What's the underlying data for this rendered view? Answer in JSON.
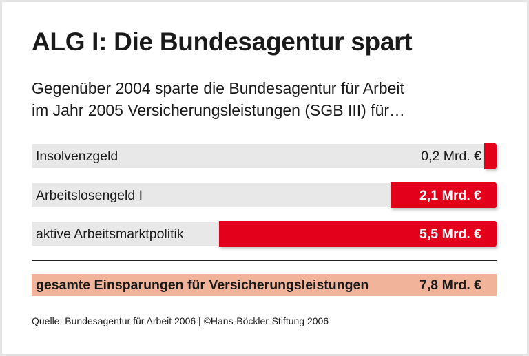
{
  "title": "ALG I: Die Bundesagentur spart",
  "subtitle_line1": "Gegenüber 2004 sparte die Bundesagentur für Arbeit",
  "subtitle_line2": "im Jahr 2005 Versicherungsleistungen (SGB III) für…",
  "chart_data": {
    "type": "bar",
    "orientation": "horizontal",
    "categories": [
      "Insolvenzgeld",
      "Arbeitslosengeld I",
      "aktive Arbeitsmarktpolitik"
    ],
    "values": [
      0.2,
      2.1,
      5.5
    ],
    "value_labels": [
      "0,2 Mrd. €",
      "2,1 Mrd. €",
      "5,5 Mrd. €"
    ],
    "unit": "Mrd. €",
    "xlim": [
      0,
      5.5
    ],
    "bar_color": "#e2001a",
    "track_color": "#e8e8e8",
    "total": {
      "label": "gesamte Einsparungen für Versicherungsleistungen",
      "value": 7.8,
      "value_label": "7,8 Mrd. €",
      "color": "#f2b39b"
    }
  },
  "source": "Quelle: Bundesagentur für Arbeit 2006 | ©Hans-Böckler-Stiftung 2006"
}
